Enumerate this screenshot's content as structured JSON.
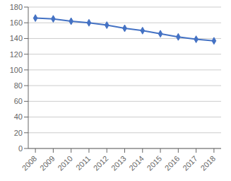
{
  "chart_data": {
    "type": "line",
    "x": [
      2008,
      2009,
      2010,
      2011,
      2012,
      2013,
      2014,
      2015,
      2016,
      2017,
      2018
    ],
    "values": [
      166,
      165,
      162,
      160,
      157,
      153,
      150,
      146,
      142,
      139,
      137
    ],
    "color": "#4472C4",
    "marker": "diamond",
    "xlim": [
      2007.6,
      2018.4
    ],
    "xticks": [
      2008,
      2009,
      2010,
      2011,
      2012,
      2013,
      2014,
      2015,
      2016,
      2017,
      2018
    ],
    "ylim": [
      0,
      180
    ],
    "yticks": [
      0,
      20,
      40,
      60,
      80,
      100,
      120,
      140,
      160,
      180
    ],
    "grid": "y"
  }
}
